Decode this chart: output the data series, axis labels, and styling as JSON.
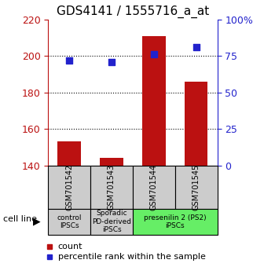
{
  "title": "GDS4141 / 1555716_a_at",
  "samples": [
    "GSM701542",
    "GSM701543",
    "GSM701544",
    "GSM701545"
  ],
  "counts": [
    153,
    144,
    211,
    186
  ],
  "percentiles": [
    72,
    71,
    76,
    81
  ],
  "ymin": 140,
  "ymax": 220,
  "yticks": [
    140,
    160,
    180,
    200,
    220
  ],
  "y2ticks": [
    0,
    25,
    50,
    75,
    100
  ],
  "y2tick_labels": [
    "0",
    "25",
    "50",
    "75",
    "100%"
  ],
  "bar_color": "#bb1111",
  "dot_color": "#2222cc",
  "bar_bottom": 140,
  "groups": [
    {
      "label": "control\nIPSCs",
      "indices": [
        0
      ],
      "color": "#cccccc"
    },
    {
      "label": "Sporadic\nPD-derived\niPSCs",
      "indices": [
        1
      ],
      "color": "#cccccc"
    },
    {
      "label": "presenilin 2 (PS2)\niPSCs",
      "indices": [
        2,
        3
      ],
      "color": "#66ee66"
    }
  ],
  "cell_line_label": "cell line",
  "legend_count_label": "count",
  "legend_pct_label": "percentile rank within the sample",
  "title_fontsize": 11,
  "tick_fontsize": 9,
  "label_fontsize": 8
}
